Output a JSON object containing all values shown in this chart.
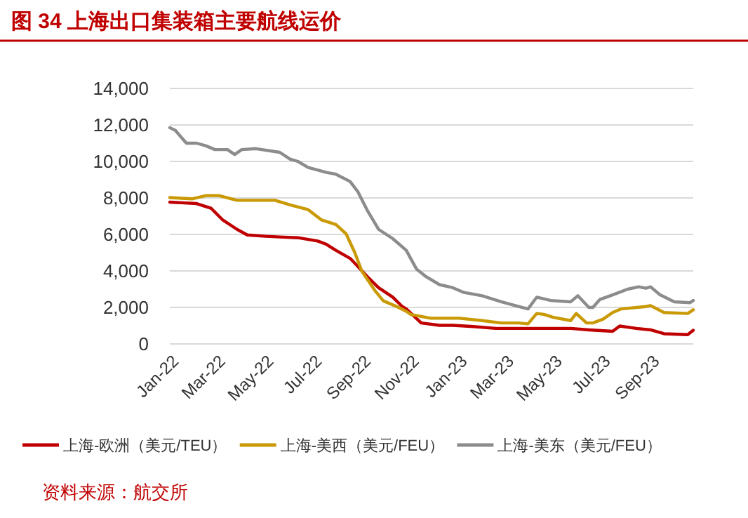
{
  "chart_data": {
    "type": "line",
    "title": "图 34   上海出口集装箱主要航线运价",
    "annotations": [
      "资料来源：航交所"
    ],
    "xlim": [
      "2022-01-01",
      "2023-10-25"
    ],
    "xticks": [
      {
        "value": "2022-01",
        "label": "Jan-22"
      },
      {
        "value": "2022-03",
        "label": "Mar-22"
      },
      {
        "value": "2022-05",
        "label": "May-22"
      },
      {
        "value": "2022-07",
        "label": "Jul-22"
      },
      {
        "value": "2022-09",
        "label": "Sep-22"
      },
      {
        "value": "2022-11",
        "label": "Nov-22"
      },
      {
        "value": "2023-01",
        "label": "Jan-23"
      },
      {
        "value": "2023-03",
        "label": "Mar-23"
      },
      {
        "value": "2023-05",
        "label": "May-23"
      },
      {
        "value": "2023-07",
        "label": "Jul-23"
      },
      {
        "value": "2023-09",
        "label": "Sep-23"
      }
    ],
    "ylim": [
      0,
      14000
    ],
    "yticks": [
      {
        "value": 0,
        "label": "0"
      },
      {
        "value": 2000,
        "label": "2,000"
      },
      {
        "value": 4000,
        "label": "4,000"
      },
      {
        "value": 6000,
        "label": "6,000"
      },
      {
        "value": 8000,
        "label": "8,000"
      },
      {
        "value": 10000,
        "label": "10,000"
      },
      {
        "value": 12000,
        "label": "12,000"
      },
      {
        "value": 14000,
        "label": "14,000"
      }
    ],
    "grid": "y",
    "legend": "bottom",
    "marker": "none",
    "line_style": "solid",
    "series": [
      {
        "name": "上海-欧洲（美元/TEU）",
        "color": "#c00000",
        "x": [
          "2022-01-01",
          "2022-02-04",
          "2022-02-22",
          "2022-03-09",
          "2022-03-27",
          "2022-04-09",
          "2022-05-02",
          "2022-05-25",
          "2022-06-12",
          "2022-07-07",
          "2022-07-18",
          "2022-07-30",
          "2022-08-17",
          "2022-08-30",
          "2022-09-10",
          "2022-09-22",
          "2022-10-10",
          "2022-10-22",
          "2022-10-27",
          "2022-11-15",
          "2022-12-08",
          "2022-12-25",
          "2023-01-20",
          "2023-02-17",
          "2023-03-23",
          "2023-04-23",
          "2023-05-23",
          "2023-06-15",
          "2023-07-15",
          "2023-07-24",
          "2023-08-14",
          "2023-09-01",
          "2023-09-18",
          "2023-10-18",
          "2023-10-25"
        ],
        "values": [
          7770,
          7690,
          7440,
          6790,
          6280,
          5970,
          5900,
          5850,
          5820,
          5640,
          5460,
          5130,
          4690,
          4100,
          3590,
          3080,
          2560,
          2050,
          1920,
          1150,
          1020,
          1020,
          950,
          850,
          850,
          850,
          850,
          770,
          690,
          980,
          850,
          770,
          560,
          510,
          750
        ]
      },
      {
        "name": "上海-美西（美元/FEU）",
        "color": "#c99a06",
        "x": [
          "2022-01-01",
          "2022-01-29",
          "2022-02-16",
          "2022-03-04",
          "2022-03-27",
          "2022-04-20",
          "2022-05-14",
          "2022-06-02",
          "2022-06-25",
          "2022-07-12",
          "2022-07-30",
          "2022-08-12",
          "2022-08-23",
          "2022-09-01",
          "2022-09-17",
          "2022-09-28",
          "2022-10-15",
          "2022-10-27",
          "2022-11-02",
          "2022-11-27",
          "2023-01-02",
          "2023-01-31",
          "2023-02-24",
          "2023-03-18",
          "2023-03-30",
          "2023-04-10",
          "2023-04-19",
          "2023-05-01",
          "2023-05-23",
          "2023-05-30",
          "2023-06-12",
          "2023-06-20",
          "2023-07-03",
          "2023-07-15",
          "2023-07-26",
          "2023-08-26",
          "2023-09-01",
          "2023-09-18",
          "2023-10-18",
          "2023-10-25"
        ],
        "values": [
          8020,
          7950,
          8130,
          8130,
          7870,
          7870,
          7870,
          7620,
          7360,
          6790,
          6540,
          6030,
          5000,
          3970,
          2950,
          2360,
          2050,
          1790,
          1610,
          1410,
          1410,
          1280,
          1150,
          1150,
          1100,
          1670,
          1620,
          1460,
          1280,
          1670,
          1150,
          1150,
          1360,
          1720,
          1920,
          2050,
          2100,
          1720,
          1670,
          1870
        ]
      },
      {
        "name": "上海-美东（美元/FEU）",
        "color": "#8c8c8c",
        "x": [
          "2022-01-01",
          "2022-01-08",
          "2022-01-22",
          "2022-02-04",
          "2022-02-16",
          "2022-02-27",
          "2022-03-15",
          "2022-03-24",
          "2022-04-02",
          "2022-04-20",
          "2022-05-20",
          "2022-06-02",
          "2022-06-12",
          "2022-06-25",
          "2022-07-18",
          "2022-07-30",
          "2022-08-17",
          "2022-08-27",
          "2022-09-08",
          "2022-09-22",
          "2022-10-10",
          "2022-10-27",
          "2022-11-09",
          "2022-11-20",
          "2022-12-08",
          "2022-12-25",
          "2023-01-08",
          "2023-01-31",
          "2023-02-24",
          "2023-03-18",
          "2023-03-30",
          "2023-04-10",
          "2023-04-28",
          "2023-05-23",
          "2023-06-01",
          "2023-06-15",
          "2023-06-20",
          "2023-06-29",
          "2023-07-15",
          "2023-08-03",
          "2023-08-17",
          "2023-08-26",
          "2023-09-01",
          "2023-09-13",
          "2023-10-01",
          "2023-10-21",
          "2023-10-25"
        ],
        "values": [
          11850,
          11700,
          11000,
          11000,
          10850,
          10650,
          10650,
          10380,
          10650,
          10700,
          10500,
          10130,
          10000,
          9670,
          9400,
          9300,
          8900,
          8330,
          7300,
          6280,
          5770,
          5130,
          4100,
          3720,
          3250,
          3080,
          2820,
          2640,
          2310,
          2050,
          1920,
          2560,
          2380,
          2310,
          2640,
          2000,
          2000,
          2440,
          2690,
          3000,
          3130,
          3050,
          3130,
          2690,
          2310,
          2260,
          2380
        ]
      }
    ]
  }
}
